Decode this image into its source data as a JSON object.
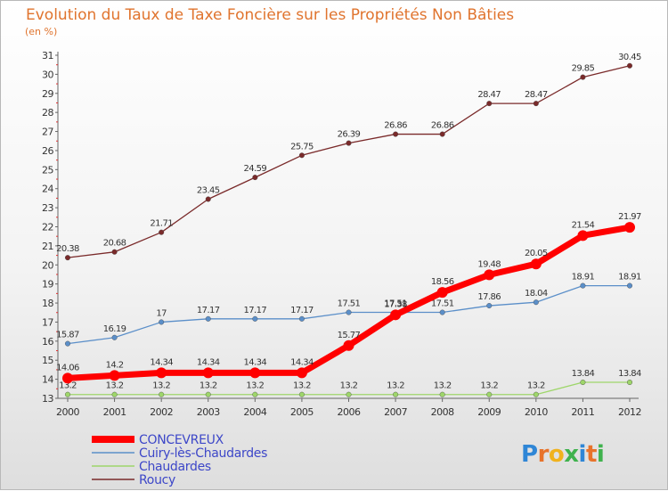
{
  "chart_data": {
    "type": "line",
    "title": "Evolution du Taux de Taxe Foncière sur les Propriétés Non Bâties",
    "subtitle": "(en %)",
    "x": [
      "2000",
      "2001",
      "2002",
      "2003",
      "2004",
      "2005",
      "2006",
      "2007",
      "2008",
      "2009",
      "2010",
      "2011",
      "2012"
    ],
    "ylim": [
      13,
      31
    ],
    "yticks": [
      13,
      14,
      15,
      16,
      17,
      18,
      19,
      20,
      21,
      22,
      23,
      24,
      25,
      26,
      27,
      28,
      29,
      30,
      31
    ],
    "grid": false,
    "legend_position": "bottom-left",
    "series": [
      {
        "name": "CONCEVREUX",
        "color": "#ff0000",
        "values": [
          14.06,
          14.2,
          14.34,
          14.34,
          14.34,
          14.34,
          15.77,
          17.38,
          18.56,
          19.48,
          20.05,
          21.54,
          21.97
        ],
        "labels": [
          "14.06",
          "14.2",
          "14.34",
          "14.34",
          "14.34",
          "14.34",
          "15.77",
          "17.38",
          "18.56",
          "19.48",
          "20.05",
          "21.54",
          "21.97"
        ]
      },
      {
        "name": "Cuiry-lès-Chaudardes",
        "color": "#5b8fc9",
        "values": [
          15.87,
          16.19,
          17,
          17.17,
          17.17,
          17.17,
          17.51,
          17.51,
          17.51,
          17.86,
          18.04,
          18.91,
          18.91
        ],
        "labels": [
          "15.87",
          "16.19",
          "17",
          "17.17",
          "17.17",
          "17.17",
          "17.51",
          "17.51",
          "17.51",
          "17.86",
          "18.04",
          "18.91",
          "18.91"
        ]
      },
      {
        "name": "Chaudardes",
        "color": "#9ed66a",
        "values": [
          13.2,
          13.2,
          13.2,
          13.2,
          13.2,
          13.2,
          13.2,
          13.2,
          13.2,
          13.2,
          13.2,
          13.84,
          13.84
        ],
        "labels": [
          "13.2",
          "13.2",
          "13.2",
          "13.2",
          "13.2",
          "13.2",
          "13.2",
          "13.2",
          "13.2",
          "13.2",
          "13.2",
          "13.84",
          "13.84"
        ]
      },
      {
        "name": "Roucy",
        "color": "#7a2a2a",
        "values": [
          20.38,
          20.68,
          21.71,
          23.45,
          24.59,
          25.75,
          26.39,
          26.86,
          26.86,
          28.47,
          28.47,
          29.85,
          30.45
        ],
        "labels": [
          "20.38",
          "20.68",
          "21.71",
          "23.45",
          "24.59",
          "25.75",
          "26.39",
          "26.86",
          "26.86",
          "28.47",
          "28.47",
          "29.85",
          "30.45"
        ]
      }
    ]
  },
  "logo": {
    "text": "Proxiti",
    "letters": [
      "P",
      "r",
      "o",
      "x",
      "i",
      "t",
      "i"
    ],
    "colors": [
      "#2f86d6",
      "#e8732b",
      "#f0b21e",
      "#3fb24d",
      "#2f86d6",
      "#e8732b",
      "#3fb24d"
    ]
  }
}
